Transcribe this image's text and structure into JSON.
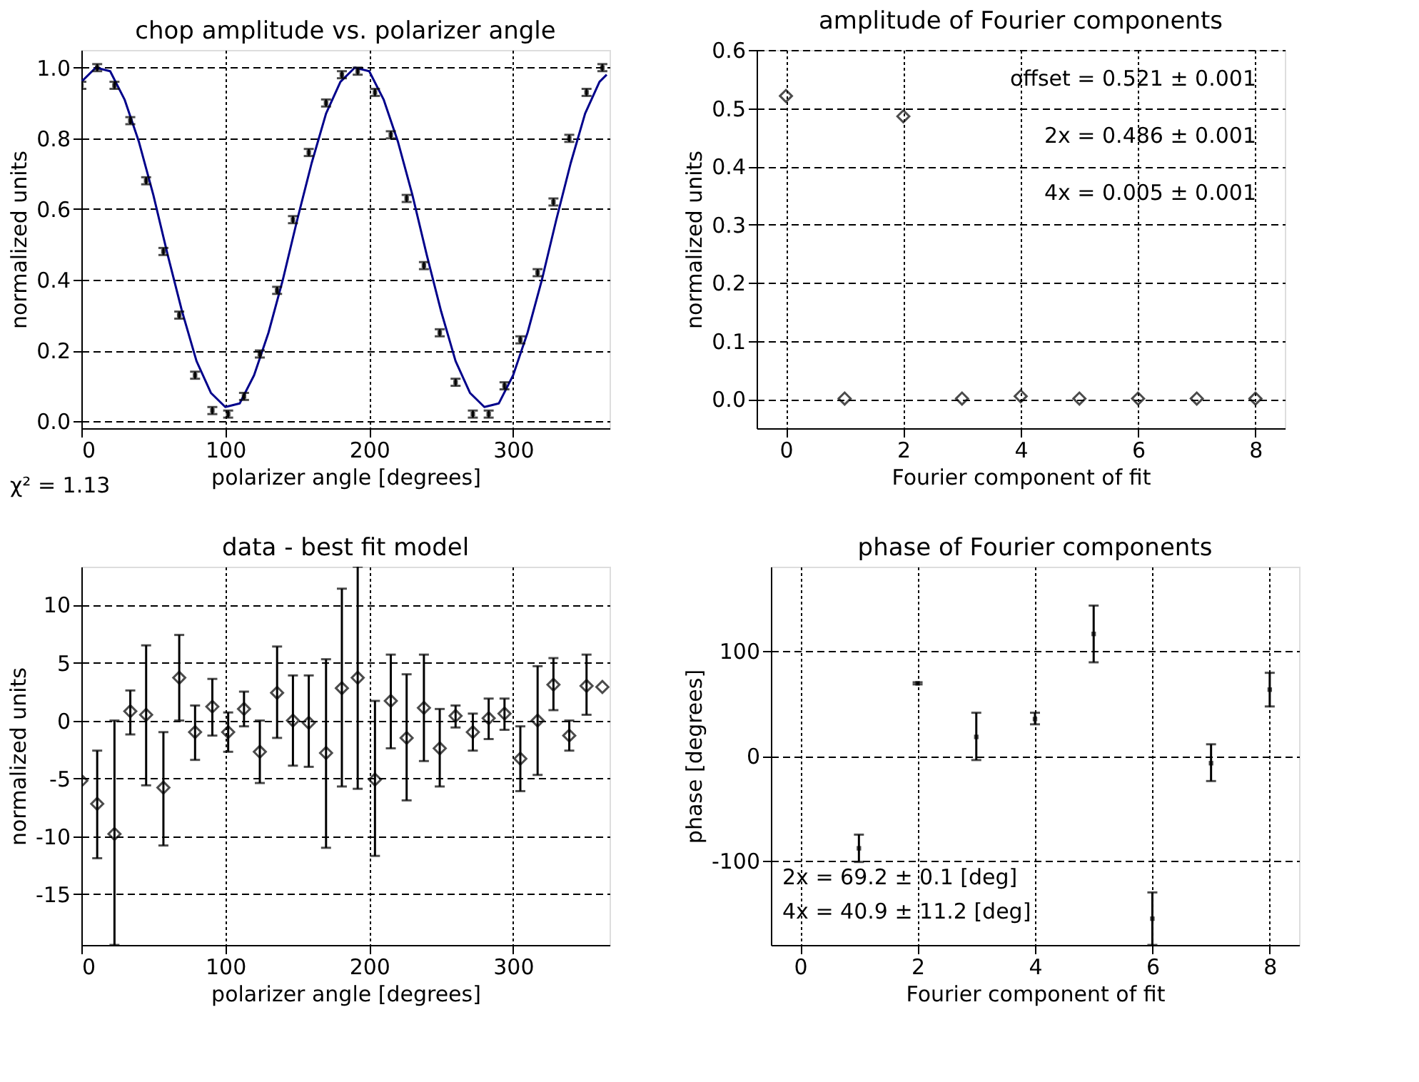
{
  "chart_data": [
    {
      "type": "scatter",
      "title": "chop amplitude vs. polarizer angle",
      "xlabel": "polarizer angle [degrees]",
      "ylabel": "normalized units",
      "xlim": [
        0,
        367
      ],
      "xticks": [
        0,
        100,
        200,
        300
      ],
      "ylim": [
        -0.02,
        1.05
      ],
      "yticks": [
        {
          "value": 0,
          "label": "0.0"
        },
        {
          "value": 0.2,
          "label": "0.2"
        },
        {
          "value": 0.4,
          "label": "0.4"
        },
        {
          "value": 0.6,
          "label": "0.6"
        },
        {
          "value": 0.8,
          "label": "0.8"
        },
        {
          "value": 1,
          "label": "1.0"
        }
      ],
      "grid": true,
      "annotations": [
        "χ² = 1.13"
      ],
      "series": [
        {
          "type": "line",
          "color": "#00008b",
          "line_style": "solid",
          "x": [
            0,
            10,
            20,
            30,
            40,
            50,
            60,
            70,
            80,
            90,
            100,
            110,
            120,
            130,
            140,
            150,
            160,
            170,
            180,
            190,
            200,
            210,
            220,
            230,
            240,
            250,
            260,
            270,
            280,
            290,
            300,
            310,
            320,
            330,
            340,
            350,
            360,
            365
          ],
          "values": [
            0.96,
            1.0,
            0.99,
            0.91,
            0.79,
            0.64,
            0.47,
            0.31,
            0.17,
            0.08,
            0.04,
            0.05,
            0.13,
            0.25,
            0.4,
            0.57,
            0.73,
            0.87,
            0.96,
            1.0,
            0.99,
            0.91,
            0.79,
            0.64,
            0.47,
            0.31,
            0.17,
            0.08,
            0.04,
            0.05,
            0.13,
            0.25,
            0.4,
            0.57,
            0.73,
            0.87,
            0.96,
            0.98
          ]
        },
        {
          "color": "#000000",
          "marker": "square",
          "x": [
            0,
            11,
            23,
            34,
            45,
            57,
            68,
            79,
            91,
            102,
            113,
            124,
            136,
            147,
            158,
            170,
            181,
            192,
            204,
            215,
            226,
            238,
            249,
            260,
            272,
            283,
            294,
            305,
            317,
            328,
            339,
            351,
            362
          ],
          "values": [
            0.95,
            1.0,
            0.95,
            0.85,
            0.68,
            0.48,
            0.3,
            0.13,
            0.03,
            0.02,
            0.07,
            0.19,
            0.37,
            0.57,
            0.76,
            0.9,
            0.98,
            0.99,
            0.93,
            0.81,
            0.63,
            0.44,
            0.25,
            0.11,
            0.02,
            0.02,
            0.1,
            0.23,
            0.42,
            0.62,
            0.8,
            0.93,
            1.0
          ],
          "errors": [
            0.01,
            0.01,
            0.01,
            0.01,
            0.01,
            0.01,
            0.01,
            0.01,
            0.01,
            0.01,
            0.01,
            0.01,
            0.01,
            0.01,
            0.01,
            0.01,
            0.01,
            0.01,
            0.01,
            0.01,
            0.01,
            0.01,
            0.01,
            0.01,
            0.01,
            0.01,
            0.01,
            0.01,
            0.01,
            0.01,
            0.01,
            0.01,
            0.01
          ]
        }
      ]
    },
    {
      "type": "scatter",
      "title": "amplitude of Fourier components",
      "xlabel": "Fourier component of fit",
      "ylabel": "normalized units",
      "xlim": [
        -0.5,
        8.5
      ],
      "xticks": [
        0,
        2,
        4,
        6,
        8
      ],
      "ylim": [
        -0.05,
        0.6
      ],
      "yticks": [
        {
          "value": 0,
          "label": "0.0"
        },
        {
          "value": 0.1,
          "label": "0.1"
        },
        {
          "value": 0.2,
          "label": "0.2"
        },
        {
          "value": 0.3,
          "label": "0.3"
        },
        {
          "value": 0.4,
          "label": "0.4"
        },
        {
          "value": 0.5,
          "label": "0.5"
        },
        {
          "value": 0.6,
          "label": "0.6"
        }
      ],
      "grid": true,
      "annotations": [
        "offset = 0.521 ± 0.001",
        "2x = 0.486 ± 0.001",
        "4x = 0.005 ± 0.001"
      ],
      "series": [
        {
          "color": "#000000",
          "marker": "diamond",
          "x": [
            0,
            1,
            2,
            3,
            4,
            5,
            6,
            7,
            8
          ],
          "values": [
            0.521,
            0.001,
            0.486,
            0.001,
            0.005,
            0.001,
            0.001,
            0.001,
            0.001
          ]
        }
      ]
    },
    {
      "type": "scatter",
      "title": "data - best fit model",
      "xlabel": "polarizer angle [degrees]",
      "ylabel": "normalized units",
      "xlim": [
        0,
        367
      ],
      "xticks": [
        0,
        100,
        200,
        300
      ],
      "ylim": [
        -19.4,
        13.3
      ],
      "yticks": [
        -15,
        -10,
        -5,
        0,
        5,
        10
      ],
      "grid": true,
      "series": [
        {
          "color": "#000000",
          "marker": "diamond",
          "x": [
            0,
            11,
            23,
            34,
            45,
            57,
            68,
            79,
            91,
            102,
            113,
            124,
            136,
            147,
            158,
            170,
            181,
            192,
            204,
            215,
            226,
            238,
            249,
            260,
            272,
            283,
            294,
            305,
            317,
            328,
            339,
            351,
            362
          ],
          "values": [
            -5.2,
            -7.2,
            -9.8,
            0.8,
            0.5,
            -5.8,
            3.7,
            -1.0,
            1.2,
            -1.0,
            1.0,
            -2.7,
            2.4,
            0.0,
            -0.2,
            -2.8,
            2.8,
            3.7,
            -5.1,
            1.7,
            -1.5,
            1.1,
            -2.4,
            0.4,
            -1.0,
            0.2,
            0.6,
            -3.3,
            0.0,
            3.1,
            -1.3,
            3.0,
            2.9
          ],
          "errors": [
            null,
            [
              -11.9,
              -2.6
            ],
            [
              -19.4,
              0.0
            ],
            [
              -1.2,
              2.6
            ],
            [
              -5.6,
              6.5
            ],
            [
              -10.8,
              -1.0
            ],
            [
              0.0,
              7.4
            ],
            [
              -3.4,
              1.3
            ],
            [
              -1.3,
              3.6
            ],
            [
              -2.7,
              0.7
            ],
            [
              -0.5,
              2.5
            ],
            [
              -5.4,
              0.0
            ],
            [
              -1.5,
              6.4
            ],
            [
              -3.9,
              3.9
            ],
            [
              -4.0,
              3.9
            ],
            [
              -11.0,
              5.3
            ],
            [
              -5.7,
              11.4
            ],
            [
              -5.9,
              13.3
            ],
            [
              -11.7,
              1.7
            ],
            [
              -2.4,
              5.7
            ],
            [
              -6.9,
              4.0
            ],
            [
              -3.5,
              5.7
            ],
            [
              -5.7,
              1.0
            ],
            [
              -0.6,
              1.3
            ],
            [
              -2.6,
              0.6
            ],
            [
              -1.6,
              1.9
            ],
            [
              -0.8,
              1.9
            ],
            [
              -6.1,
              -0.5
            ],
            [
              -4.7,
              4.7
            ],
            [
              0.9,
              5.4
            ],
            [
              -2.6,
              0.0
            ],
            [
              0.5,
              5.7
            ],
            null
          ]
        }
      ]
    },
    {
      "type": "scatter",
      "title": "phase of Fourier components",
      "xlabel": "Fourier component of fit",
      "ylabel": "phase [degrees]",
      "xlim": [
        -0.5,
        8.5
      ],
      "xticks": [
        0,
        2,
        4,
        6,
        8
      ],
      "ylim": [
        -180,
        180
      ],
      "yticks": [
        -100,
        0,
        100
      ],
      "grid": true,
      "annotations": [
        "2x = 69.2 ± 0.1 [deg]",
        "4x = 40.9 ± 11.2 [deg]"
      ],
      "series": [
        {
          "color": "#000000",
          "marker": "square",
          "x": [
            1,
            2,
            3,
            4,
            5,
            6,
            7,
            8
          ],
          "values": [
            -88,
            69,
            18,
            35,
            116,
            -155,
            -7,
            63
          ],
          "errors": [
            [
              -101,
              -75
            ],
            [
              68,
              70
            ],
            [
              -4,
              41
            ],
            [
              30,
              41
            ],
            [
              89,
              143
            ],
            [
              -180,
              -130
            ],
            [
              -24,
              11
            ],
            [
              47,
              79
            ]
          ]
        }
      ]
    }
  ]
}
